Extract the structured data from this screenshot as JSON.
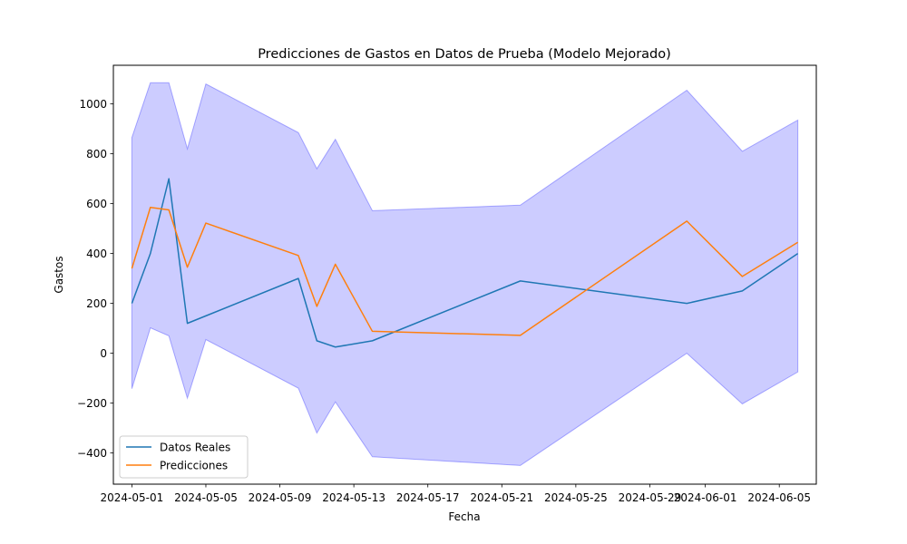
{
  "chart_data": {
    "type": "line",
    "title": "Predicciones de Gastos en Datos de Prueba (Modelo Mejorado)",
    "xlabel": "Fecha",
    "ylabel": "Gastos",
    "x_axis_type": "date",
    "xlim": [
      "2024-04-30",
      "2024-06-07"
    ],
    "ylim": [
      -525,
      1155
    ],
    "xticks": [
      "2024-05-01",
      "2024-05-05",
      "2024-05-09",
      "2024-05-13",
      "2024-05-17",
      "2024-05-21",
      "2024-05-25",
      "2024-05-29",
      "2024-06-01",
      "2024-06-05"
    ],
    "yticks": [
      -400,
      -200,
      0,
      200,
      400,
      600,
      800,
      1000
    ],
    "grid": false,
    "legend_position": "lower-left",
    "x": [
      "2024-05-01",
      "2024-05-02",
      "2024-05-03",
      "2024-05-04",
      "2024-05-05",
      "2024-05-10",
      "2024-05-11",
      "2024-05-12",
      "2024-05-14",
      "2024-05-22",
      "2024-05-31",
      "2024-06-03",
      "2024-06-06"
    ],
    "series": [
      {
        "name": "Datos Reales",
        "color": "#1f77b4",
        "values": [
          200,
          400,
          700,
          120,
          150,
          300,
          50,
          25,
          50,
          290,
          200,
          250,
          400
        ]
      },
      {
        "name": "Predicciones",
        "color": "#ff7f0e",
        "values": [
          340,
          585,
          575,
          345,
          522,
          392,
          188,
          357,
          88,
          72,
          530,
          308,
          445
        ]
      }
    ],
    "band": {
      "color": "#0000ff",
      "opacity": 0.2,
      "upper": [
        865,
        1085,
        1085,
        820,
        1080,
        885,
        740,
        858,
        572,
        594,
        1055,
        810,
        935
      ],
      "lower": [
        -142,
        102,
        70,
        -180,
        55,
        -140,
        -320,
        -195,
        -415,
        -450,
        0,
        -203,
        -75
      ]
    }
  }
}
